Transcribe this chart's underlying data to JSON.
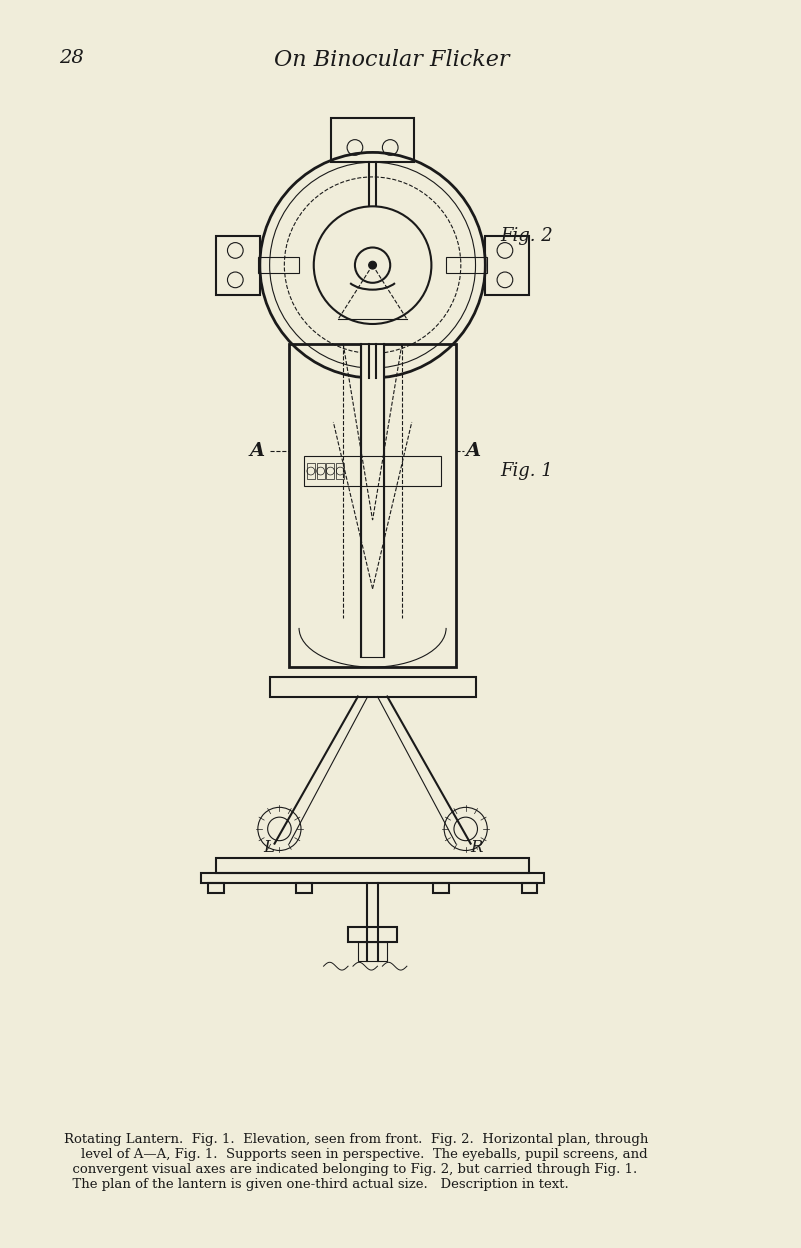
{
  "bg_color": "#f0edda",
  "title": "On Binocular Flicker",
  "page_number": "28",
  "fig1_label": "Fig. 1",
  "fig2_label": "Fig. 2",
  "label_A_left": "A",
  "label_A_right": "A",
  "label_L": "L",
  "label_R": "R",
  "caption": "Rotating Lantern.  Fig. 1.  Elevation, seen from front.  Fig. 2.  Horizontal plan, through\n    level of A—A, Fig. 1.  Supports seen in perspective.  The eyeballs, pupil screens, and\n  convergent visual axes are indicated belonging to Fig. 2, but carried through Fig. 1.\n  The plan of the lantern is given one-third actual size.   Description in text.",
  "line_color": "#1a1a1a",
  "text_color": "#1a1a1a"
}
